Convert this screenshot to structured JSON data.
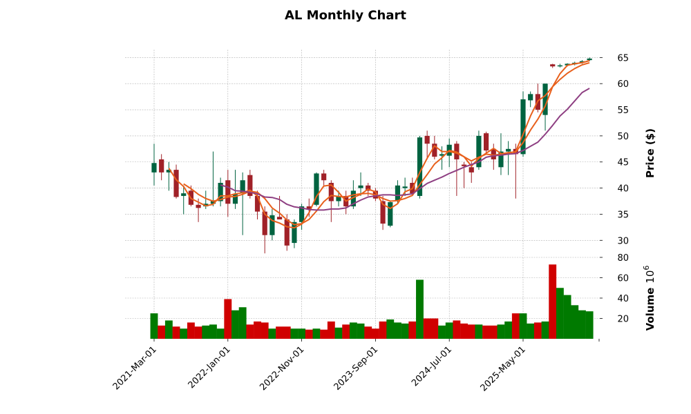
{
  "chart_data": {
    "type": "candlestick",
    "title": "AL Monthly Chart",
    "price_ylabel": "Price ($)",
    "volume_ylabel": "Volume",
    "volume_unit": "10",
    "volume_unit_exp": "6",
    "price_yticks": [
      30,
      35,
      40,
      45,
      50,
      55,
      60,
      65
    ],
    "volume_yticks": [
      20,
      40,
      60,
      80
    ],
    "price_ylim": [
      27,
      66.5
    ],
    "volume_ylim": [
      0,
      80
    ],
    "xticks": [
      {
        "index": 0,
        "label": "2021-Mar-01"
      },
      {
        "index": 10,
        "label": "2022-Jan-01"
      },
      {
        "index": 20,
        "label": "2022-Nov-01"
      },
      {
        "index": 30,
        "label": "2023-Sep-01"
      },
      {
        "index": 40,
        "label": "2024-Jul-01"
      },
      {
        "index": 50,
        "label": "2025-May-01"
      }
    ],
    "colors": {
      "up": "#006340",
      "down": "#a02128",
      "vol_up": "#007a00",
      "vol_down": "#d00000",
      "ma_fast": "#e8601c",
      "ma_mid": "#e8601c",
      "ma_slow": "#8e3f82"
    },
    "candles": [
      {
        "date": "2021-Mar",
        "open": 43.0,
        "high": 48.5,
        "low": 40.5,
        "close": 44.8,
        "volume": 25
      },
      {
        "date": "2021-Apr",
        "open": 45.5,
        "high": 46.5,
        "low": 41.5,
        "close": 43.0,
        "volume": 13
      },
      {
        "date": "2021-May",
        "open": 43.0,
        "high": 45.0,
        "low": 39.5,
        "close": 43.5,
        "volume": 18
      },
      {
        "date": "2021-Jun",
        "open": 43.5,
        "high": 44.5,
        "low": 38.0,
        "close": 38.3,
        "volume": 12
      },
      {
        "date": "2021-Jul",
        "open": 38.5,
        "high": 40.5,
        "low": 35.0,
        "close": 39.0,
        "volume": 10
      },
      {
        "date": "2021-Aug",
        "open": 39.5,
        "high": 40.5,
        "low": 36.5,
        "close": 36.8,
        "volume": 16
      },
      {
        "date": "2021-Sep",
        "open": 36.8,
        "high": 38.0,
        "low": 33.5,
        "close": 36.2,
        "volume": 12
      },
      {
        "date": "2021-Oct",
        "open": 36.5,
        "high": 39.5,
        "low": 36.0,
        "close": 37.0,
        "volume": 13
      },
      {
        "date": "2021-Nov",
        "open": 37.0,
        "high": 47.0,
        "low": 36.5,
        "close": 37.5,
        "volume": 14
      },
      {
        "date": "2021-Dec",
        "open": 37.5,
        "high": 42.0,
        "low": 36.5,
        "close": 41.0,
        "volume": 10
      },
      {
        "date": "2022-Jan",
        "open": 41.5,
        "high": 43.5,
        "low": 34.5,
        "close": 37.0,
        "volume": 39
      },
      {
        "date": "2022-Feb",
        "open": 37.0,
        "high": 43.5,
        "low": 36.0,
        "close": 38.8,
        "volume": 28
      },
      {
        "date": "2022-Mar",
        "open": 39.0,
        "high": 43.0,
        "low": 31.0,
        "close": 41.5,
        "volume": 31
      },
      {
        "date": "2022-Apr",
        "open": 42.5,
        "high": 43.5,
        "low": 38.0,
        "close": 38.5,
        "volume": 14
      },
      {
        "date": "2022-May",
        "open": 38.5,
        "high": 39.5,
        "low": 34.0,
        "close": 35.5,
        "volume": 17
      },
      {
        "date": "2022-Jun",
        "open": 35.5,
        "high": 36.5,
        "low": 27.5,
        "close": 31.0,
        "volume": 16
      },
      {
        "date": "2022-Jul",
        "open": 31.0,
        "high": 36.0,
        "low": 30.0,
        "close": 34.8,
        "volume": 10
      },
      {
        "date": "2022-Aug",
        "open": 34.5,
        "high": 38.5,
        "low": 34.0,
        "close": 34.0,
        "volume": 12
      },
      {
        "date": "2022-Sep",
        "open": 34.0,
        "high": 35.0,
        "low": 28.0,
        "close": 29.0,
        "volume": 12
      },
      {
        "date": "2022-Oct",
        "open": 29.5,
        "high": 34.0,
        "low": 28.5,
        "close": 33.5,
        "volume": 10
      },
      {
        "date": "2022-Nov",
        "open": 33.5,
        "high": 37.0,
        "low": 32.0,
        "close": 36.5,
        "volume": 10
      },
      {
        "date": "2022-Dec",
        "open": 36.5,
        "high": 38.0,
        "low": 34.5,
        "close": 36.0,
        "volume": 9
      },
      {
        "date": "2023-Jan",
        "open": 36.8,
        "high": 43.0,
        "low": 36.5,
        "close": 42.8,
        "volume": 10
      },
      {
        "date": "2023-Feb",
        "open": 42.8,
        "high": 43.5,
        "low": 40.5,
        "close": 41.5,
        "volume": 9
      },
      {
        "date": "2023-Mar",
        "open": 41.0,
        "high": 41.5,
        "low": 33.5,
        "close": 37.5,
        "volume": 17
      },
      {
        "date": "2023-Apr",
        "open": 37.5,
        "high": 39.5,
        "low": 36.5,
        "close": 38.5,
        "volume": 11
      },
      {
        "date": "2023-May",
        "open": 38.5,
        "high": 39.5,
        "low": 35.0,
        "close": 36.5,
        "volume": 14
      },
      {
        "date": "2023-Jun",
        "open": 36.5,
        "high": 41.5,
        "low": 36.0,
        "close": 39.5,
        "volume": 16
      },
      {
        "date": "2023-Jul",
        "open": 40.0,
        "high": 43.0,
        "low": 38.5,
        "close": 40.5,
        "volume": 15
      },
      {
        "date": "2023-Aug",
        "open": 40.5,
        "high": 41.0,
        "low": 38.5,
        "close": 39.5,
        "volume": 12
      },
      {
        "date": "2023-Sep",
        "open": 39.5,
        "high": 40.0,
        "low": 37.5,
        "close": 38.0,
        "volume": 10
      },
      {
        "date": "2023-Oct",
        "open": 37.5,
        "high": 38.5,
        "low": 32.0,
        "close": 33.2,
        "volume": 17
      },
      {
        "date": "2023-Nov",
        "open": 32.8,
        "high": 37.5,
        "low": 32.5,
        "close": 37.3,
        "volume": 19
      },
      {
        "date": "2023-Dec",
        "open": 37.5,
        "high": 41.5,
        "low": 37.0,
        "close": 40.5,
        "volume": 16
      },
      {
        "date": "2024-Jan",
        "open": 40.0,
        "high": 42.0,
        "low": 38.5,
        "close": 40.3,
        "volume": 15
      },
      {
        "date": "2024-Feb",
        "open": 41.0,
        "high": 42.0,
        "low": 38.5,
        "close": 39.0,
        "volume": 17
      },
      {
        "date": "2024-Mar",
        "open": 38.5,
        "high": 50.0,
        "low": 38.0,
        "close": 49.7,
        "volume": 58
      },
      {
        "date": "2024-Apr",
        "open": 50.0,
        "high": 51.0,
        "low": 45.5,
        "close": 48.5,
        "volume": 20
      },
      {
        "date": "2024-May",
        "open": 48.5,
        "high": 50.0,
        "low": 45.5,
        "close": 46.0,
        "volume": 20
      },
      {
        "date": "2024-Jun",
        "open": 46.2,
        "high": 48.0,
        "low": 43.5,
        "close": 46.5,
        "volume": 13
      },
      {
        "date": "2024-Jul",
        "open": 46.2,
        "high": 49.5,
        "low": 44.0,
        "close": 48.3,
        "volume": 16
      },
      {
        "date": "2024-Aug",
        "open": 48.5,
        "high": 49.0,
        "low": 38.5,
        "close": 45.5,
        "volume": 18
      },
      {
        "date": "2024-Sep",
        "open": 44.5,
        "high": 45.0,
        "low": 40.0,
        "close": 44.2,
        "volume": 15
      },
      {
        "date": "2024-Oct",
        "open": 44.0,
        "high": 45.0,
        "low": 41.0,
        "close": 43.0,
        "volume": 14
      },
      {
        "date": "2024-Nov",
        "open": 44.0,
        "high": 51.0,
        "low": 43.5,
        "close": 50.0,
        "volume": 14
      },
      {
        "date": "2024-Dec",
        "open": 50.5,
        "high": 50.8,
        "low": 46.5,
        "close": 47.2,
        "volume": 13
      },
      {
        "date": "2025-Jan",
        "open": 47.5,
        "high": 48.5,
        "low": 43.5,
        "close": 45.5,
        "volume": 13
      },
      {
        "date": "2025-Feb",
        "open": 44.0,
        "high": 50.5,
        "low": 42.5,
        "close": 47.0,
        "volume": 14
      },
      {
        "date": "2025-Mar",
        "open": 47.0,
        "high": 49.0,
        "low": 42.5,
        "close": 47.5,
        "volume": 17
      },
      {
        "date": "2025-Apr",
        "open": 47.5,
        "high": 48.5,
        "low": 38.0,
        "close": 46.5,
        "volume": 25
      },
      {
        "date": "2025-May",
        "open": 46.5,
        "high": 58.5,
        "low": 46.0,
        "close": 57.0,
        "volume": 25
      },
      {
        "date": "2025-Jun",
        "open": 56.8,
        "high": 58.5,
        "low": 55.5,
        "close": 58.0,
        "volume": 15
      },
      {
        "date": "2025-Jul",
        "open": 58.0,
        "high": 60.0,
        "low": 54.5,
        "close": 55.0,
        "volume": 16
      },
      {
        "date": "2025-Aug",
        "open": 54.0,
        "high": 60.0,
        "low": 51.0,
        "close": 60.0,
        "volume": 17
      },
      {
        "date": "2025-Sep",
        "open": 63.7,
        "high": 63.8,
        "low": 63.0,
        "close": 63.3,
        "volume": 73
      },
      {
        "date": "2025-Oct",
        "open": 63.3,
        "high": 63.8,
        "low": 63.1,
        "close": 63.5,
        "volume": 50
      },
      {
        "date": "2025-Nov",
        "open": 63.5,
        "high": 63.9,
        "low": 63.3,
        "close": 63.8,
        "volume": 43
      },
      {
        "date": "2025-Dec",
        "open": 63.7,
        "high": 64.2,
        "low": 63.5,
        "close": 64.0,
        "volume": 33
      },
      {
        "date": "2026-Jan",
        "open": 64.0,
        "high": 64.5,
        "low": 63.8,
        "close": 64.3,
        "volume": 28
      },
      {
        "date": "2026-Feb",
        "open": 64.5,
        "high": 65.0,
        "low": 64.3,
        "close": 64.8,
        "volume": 27
      }
    ],
    "moving_averages": [
      {
        "name": "MA3",
        "color": "#e8601c",
        "values": [
          null,
          null,
          43.8,
          41.6,
          40.3,
          38.0,
          37.3,
          36.6,
          36.9,
          38.5,
          38.5,
          38.9,
          39.1,
          39.6,
          38.5,
          35.0,
          33.8,
          33.3,
          32.6,
          32.4,
          33.1,
          35.3,
          38.4,
          40.4,
          40.6,
          39.2,
          37.5,
          38.2,
          38.8,
          39.8,
          39.3,
          36.9,
          36.1,
          37.0,
          39.3,
          39.9,
          43.0,
          45.7,
          48.1,
          47.0,
          47.0,
          46.7,
          46.0,
          44.2,
          45.7,
          46.7,
          47.6,
          46.6,
          46.7,
          47.0,
          50.3,
          53.8,
          56.7,
          57.7,
          59.4,
          61.9,
          63.5,
          63.8,
          64.0,
          64.4
        ]
      },
      {
        "name": "MA5",
        "color": "#e8601c",
        "values": [
          null,
          null,
          null,
          null,
          40.8,
          39.9,
          38.8,
          38.0,
          37.5,
          37.8,
          38.3,
          38.4,
          38.8,
          39.4,
          39.2,
          38.0,
          36.2,
          35.2,
          33.9,
          33.0,
          33.2,
          34.0,
          35.6,
          37.4,
          38.6,
          38.4,
          38.3,
          38.7,
          38.9,
          39.0,
          38.7,
          38.0,
          37.5,
          37.6,
          38.0,
          38.6,
          40.7,
          42.6,
          44.6,
          45.8,
          47.2,
          46.9,
          46.0,
          45.2,
          45.9,
          46.5,
          46.3,
          46.5,
          46.8,
          46.9,
          48.7,
          51.1,
          53.2,
          55.7,
          59.4,
          60.8,
          62.0,
          62.9,
          63.6,
          64.0
        ]
      },
      {
        "name": "MA10",
        "color": "#8e3f82",
        "values": [
          null,
          null,
          null,
          null,
          null,
          null,
          null,
          null,
          null,
          40.6,
          40.2,
          39.5,
          39.4,
          39.2,
          38.9,
          38.3,
          38.2,
          37.8,
          36.9,
          36.4,
          36.2,
          35.9,
          35.8,
          35.8,
          36.0,
          36.0,
          36.2,
          37.0,
          37.7,
          38.3,
          38.5,
          38.7,
          38.7,
          38.6,
          38.7,
          38.9,
          39.9,
          40.9,
          41.5,
          42.1,
          42.8,
          43.4,
          44.0,
          44.5,
          45.0,
          45.9,
          46.2,
          46.3,
          46.5,
          46.6,
          47.2,
          48.0,
          48.8,
          50.3,
          52.0,
          53.8,
          55.1,
          56.7,
          58.3,
          59.1
        ]
      }
    ]
  }
}
